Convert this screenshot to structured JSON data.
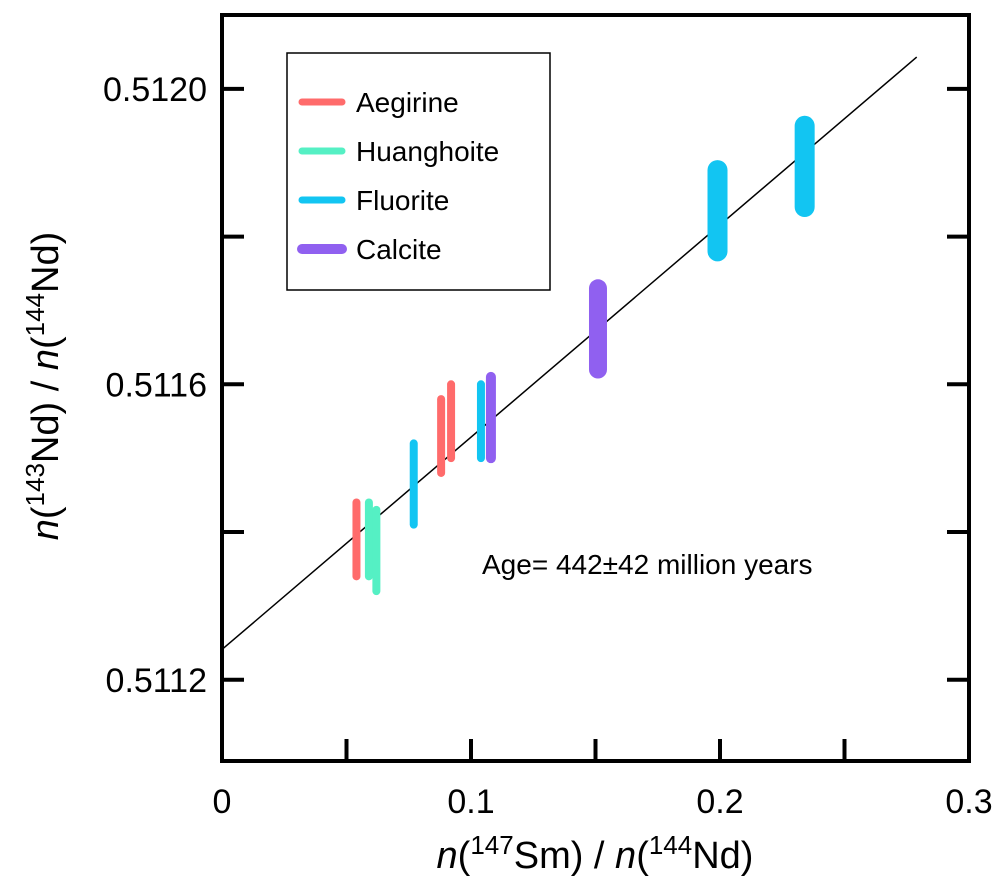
{
  "chart_data": {
    "type": "scatter",
    "title": "",
    "xlabel": {
      "parts": [
        "n(",
        "147",
        "Sm) / n(",
        "144",
        "Nd)"
      ]
    },
    "ylabel": {
      "parts": [
        "n(",
        "143",
        "Nd) / n(",
        "144",
        "Nd)"
      ]
    },
    "xlim": [
      0,
      0.3
    ],
    "ylim": [
      0.51109,
      0.5121
    ],
    "x_ticks": [
      0,
      0.1,
      0.2,
      0.3
    ],
    "x_tick_labels": [
      "0",
      "0.1",
      "0.2",
      "0.3"
    ],
    "x_minor_ticks": [
      0.05,
      0.15,
      0.25
    ],
    "y_ticks": [
      0.5112,
      0.5116,
      0.512
    ],
    "y_tick_labels": [
      "0.5112",
      "0.5116",
      "0.5120"
    ],
    "y_minor_ticks": [
      0.5114,
      0.5118
    ],
    "grid": false,
    "legend_position": "top-left",
    "annotation": "Age= 442±42 million years",
    "isochron": {
      "x": [
        0,
        0.279
      ],
      "y": [
        0.511241,
        0.512043
      ]
    },
    "series": [
      {
        "name": "Aegirine",
        "color": "#ff6b6b",
        "points": [
          {
            "x": 0.054,
            "y_low": 0.51134,
            "y_high": 0.51144
          },
          {
            "x": 0.088,
            "y_low": 0.51148,
            "y_high": 0.51158
          },
          {
            "x": 0.092,
            "y_low": 0.5115,
            "y_high": 0.5116
          }
        ]
      },
      {
        "name": "Huanghoite",
        "color": "#55f0c4",
        "points": [
          {
            "x": 0.059,
            "y_low": 0.51134,
            "y_high": 0.51144
          },
          {
            "x": 0.062,
            "y_low": 0.51132,
            "y_high": 0.51143
          }
        ]
      },
      {
        "name": "Fluorite",
        "color": "#12c5f2",
        "points": [
          {
            "x": 0.077,
            "y_low": 0.51141,
            "y_high": 0.51152
          },
          {
            "x": 0.104,
            "y_low": 0.5115,
            "y_high": 0.5116
          },
          {
            "x": 0.199,
            "y_low": 0.51178,
            "y_high": 0.51189
          },
          {
            "x": 0.234,
            "y_low": 0.51184,
            "y_high": 0.51195
          }
        ]
      },
      {
        "name": "Calcite",
        "color": "#9060f0",
        "points": [
          {
            "x": 0.108,
            "y_low": 0.5115,
            "y_high": 0.51161
          },
          {
            "x": 0.151,
            "y_low": 0.51162,
            "y_high": 0.51173
          }
        ]
      }
    ]
  }
}
